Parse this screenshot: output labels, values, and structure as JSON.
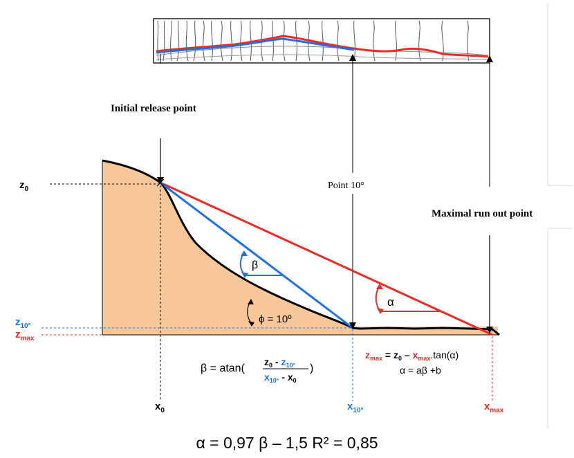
{
  "labels": {
    "initial_release_point": "Initial release point",
    "point_10": "Point 10°",
    "maximal_run_out_point": "Maximal run out point",
    "z0": "z",
    "z0_sub": "0",
    "z10": "z",
    "z10_sub": "10°",
    "zmax": "z",
    "zmax_sub": "max",
    "x0": "x",
    "x0_sub": "0",
    "x10": "x",
    "x10_sub": "10°",
    "xmax": "x",
    "xmax_sub": "max",
    "beta_symbol": "β",
    "alpha_symbol": "α",
    "phi_angle": "ϕ = 10º"
  },
  "formulas": {
    "beta_lhs": "β =  atan(",
    "beta_num_z0": "z",
    "beta_num_z0_sub": "0",
    "beta_num_minus": " - ",
    "beta_num_z10": "z",
    "beta_num_z10_sub": "10°",
    "beta_den_x10": "x",
    "beta_den_x10_sub": "10°",
    "beta_den_minus": " - x",
    "beta_den_x0_sub": "0",
    "beta_close": ")",
    "zmax_lhs": "z",
    "zmax_lhs_sub": "max",
    "zmax_eq": " = z",
    "zmax_eq_sub": "0",
    "zmax_minus": " – ",
    "zmax_x": "x",
    "zmax_x_sub": "max",
    "zmax_tan": ".tan(α)",
    "alpha_relation": "α = aβ +b",
    "bottom_equation": "α = 0,97 β – 1,5 R² = 0,85"
  },
  "colors": {
    "red": "#ee2a24",
    "blue": "#1f6fe8",
    "terrain_fill": "#f7c79a",
    "black": "#000000"
  }
}
